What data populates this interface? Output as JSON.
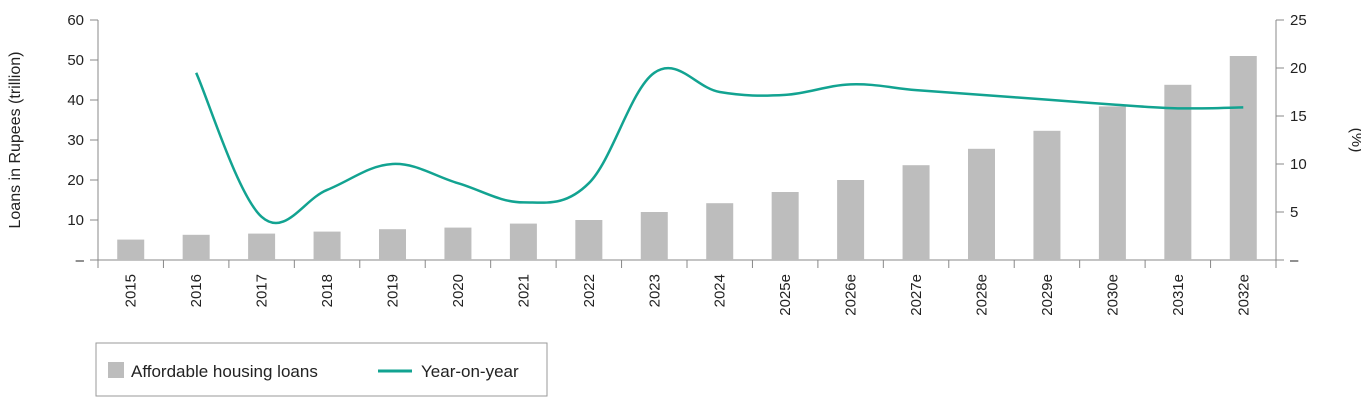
{
  "chart_data": {
    "type": "bar+line",
    "categories": [
      "2015",
      "2016",
      "2017",
      "2018",
      "2019",
      "2020",
      "2021",
      "2022",
      "2023",
      "2024",
      "2025e",
      "2026e",
      "2027e",
      "2028e",
      "2029e",
      "2030e",
      "2031e",
      "2032e"
    ],
    "series": [
      {
        "name": "Affordable housing loans",
        "type": "bar",
        "axis": "left",
        "color": "#bdbdbd",
        "values": [
          5.1,
          6.3,
          6.6,
          7.1,
          7.7,
          8.1,
          9.1,
          10.0,
          12.0,
          14.2,
          17.0,
          20.0,
          23.7,
          27.8,
          32.3,
          38.4,
          43.8,
          51.0
        ]
      },
      {
        "name": "Year-on-year",
        "type": "line",
        "axis": "right",
        "color": "#12a391",
        "values": [
          null,
          19.5,
          4.5,
          7.3,
          10.0,
          8.0,
          6.0,
          8.0,
          19.5,
          17.5,
          17.2,
          18.3,
          17.7,
          17.2,
          16.7,
          16.2,
          15.8,
          15.9
        ]
      }
    ],
    "ylabel": "Loans in Rupees (trillion)",
    "y2label": "(%)",
    "ylim": [
      0,
      60
    ],
    "y2lim": [
      0,
      25
    ],
    "yticks": [
      "–",
      "10",
      "20",
      "30",
      "40",
      "50",
      "60"
    ],
    "y2ticks": [
      "–",
      "5",
      "10",
      "15",
      "20",
      "25"
    ],
    "grid": false,
    "legend_position": "bottom-left"
  }
}
